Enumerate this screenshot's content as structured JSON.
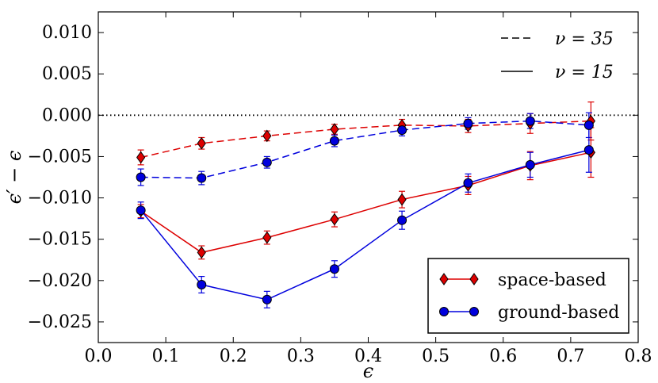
{
  "chart_data": {
    "type": "line",
    "title": "",
    "xlabel": "ϵ",
    "ylabel": "ϵ′ − ϵ",
    "xlim": [
      0.0,
      0.8
    ],
    "ylim": [
      -0.0275,
      0.0125
    ],
    "xticks": [
      0.0,
      0.1,
      0.2,
      0.3,
      0.4,
      0.5,
      0.6,
      0.7,
      0.8
    ],
    "xtick_labels": [
      "0.0",
      "0.1",
      "0.2",
      "0.3",
      "0.4",
      "0.5",
      "0.6",
      "0.7",
      "0.8"
    ],
    "yticks": [
      -0.025,
      -0.02,
      -0.015,
      -0.01,
      -0.005,
      0.0,
      0.005,
      0.01
    ],
    "ytick_labels": [
      "−0.025",
      "−0.020",
      "−0.015",
      "−0.010",
      "−0.005",
      "0.000",
      "0.005",
      "0.010"
    ],
    "reference_line": {
      "y": 0.0,
      "style": "dotted"
    },
    "legend_markers": [
      {
        "label": "space-based",
        "marker": "diamond",
        "color": "#dd0000"
      },
      {
        "label": "ground-based",
        "marker": "circle",
        "color": "#0000dd"
      }
    ],
    "legend_styles": [
      {
        "label": "ν = 35",
        "linestyle": "dashed"
      },
      {
        "label": "ν = 15",
        "linestyle": "solid"
      }
    ],
    "series": [
      {
        "name": "space-based ν=35",
        "color": "#dd0000",
        "marker": "diamond",
        "linestyle": "dashed",
        "x": [
          0.063,
          0.153,
          0.25,
          0.35,
          0.45,
          0.548,
          0.64,
          0.73
        ],
        "y": [
          -0.0051,
          -0.0034,
          -0.0025,
          -0.0017,
          -0.0012,
          -0.0013,
          -0.001,
          -0.0007
        ],
        "err": [
          0.0009,
          0.0007,
          0.0006,
          0.0006,
          0.0007,
          0.0008,
          0.0012,
          0.0023
        ]
      },
      {
        "name": "ground-based ν=35",
        "color": "#0000dd",
        "marker": "circle",
        "linestyle": "dashed",
        "x": [
          0.063,
          0.153,
          0.25,
          0.35,
          0.45,
          0.548,
          0.64,
          0.727
        ],
        "y": [
          -0.0075,
          -0.0076,
          -0.0057,
          -0.0031,
          -0.0018,
          -0.001,
          -0.0007,
          -0.0012
        ],
        "err": [
          0.001,
          0.0008,
          0.0007,
          0.0007,
          0.0007,
          0.0007,
          0.0009,
          0.0015
        ]
      },
      {
        "name": "space-based ν=15",
        "color": "#dd0000",
        "marker": "diamond",
        "linestyle": "solid",
        "x": [
          0.063,
          0.153,
          0.25,
          0.35,
          0.45,
          0.548,
          0.64,
          0.73
        ],
        "y": [
          -0.0116,
          -0.0166,
          -0.0148,
          -0.0126,
          -0.0102,
          -0.0085,
          -0.0061,
          -0.0045
        ],
        "err": [
          0.0008,
          0.0008,
          0.0008,
          0.0009,
          0.001,
          0.0011,
          0.0017,
          0.003
        ]
      },
      {
        "name": "ground-based ν=15",
        "color": "#0000dd",
        "marker": "circle",
        "linestyle": "solid",
        "x": [
          0.063,
          0.153,
          0.25,
          0.35,
          0.45,
          0.548,
          0.64,
          0.727
        ],
        "y": [
          -0.0115,
          -0.0205,
          -0.0223,
          -0.0186,
          -0.0127,
          -0.0082,
          -0.006,
          -0.0042
        ],
        "err": [
          0.001,
          0.001,
          0.001,
          0.001,
          0.0011,
          0.0011,
          0.0015,
          0.0027
        ]
      }
    ]
  }
}
